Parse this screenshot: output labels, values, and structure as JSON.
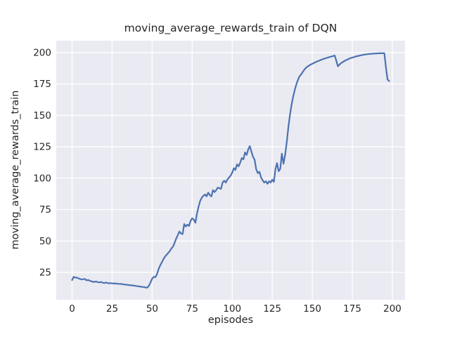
{
  "chart_data": {
    "type": "line",
    "title": "moving_average_rewards_train of DQN",
    "xlabel": "episodes",
    "ylabel": "moving_average_rewards_train",
    "legend": null,
    "grid": true,
    "xlim": [
      -9.9,
      207.9
    ],
    "ylim": [
      3.2,
      209.4
    ],
    "x_ticks": [
      0,
      25,
      50,
      75,
      100,
      125,
      150,
      175,
      200
    ],
    "y_ticks": [
      25,
      50,
      75,
      100,
      125,
      150,
      175,
      200
    ],
    "colors": {
      "figure_background": "#ffffff",
      "plot_background": "#eaeaf2",
      "grid": "#ffffff",
      "text": "#262626",
      "line": "#4c72b0"
    },
    "series": [
      {
        "name": "moving_average_rewards_train",
        "color": "#4c72b0",
        "x_start": 0,
        "x_step": 1,
        "values": [
          18.9,
          21.5,
          20.8,
          20.9,
          20.2,
          19.8,
          19.4,
          19.6,
          19.8,
          18.7,
          19.0,
          18.4,
          17.9,
          17.5,
          17.4,
          17.8,
          17.2,
          17.0,
          17.4,
          16.9,
          16.5,
          16.9,
          16.6,
          16.2,
          16.5,
          16.3,
          16.1,
          16.3,
          16.0,
          15.9,
          15.9,
          15.7,
          15.5,
          15.3,
          15.2,
          15.0,
          14.9,
          14.7,
          14.6,
          14.4,
          14.2,
          14.0,
          13.8,
          13.6,
          13.4,
          13.3,
          12.9,
          13.0,
          14.5,
          17.0,
          20.0,
          21.5,
          21.2,
          23.5,
          27.5,
          30.5,
          33.0,
          35.5,
          37.5,
          39.0,
          40.5,
          42.0,
          44.0,
          45.5,
          48.5,
          52.0,
          54.5,
          57.5,
          56.0,
          55.5,
          63.5,
          61.5,
          63.0,
          62.0,
          66.0,
          68.0,
          67.0,
          64.5,
          72.0,
          77.5,
          82.0,
          84.5,
          86.0,
          87.0,
          85.5,
          88.5,
          86.5,
          85.5,
          90.5,
          89.0,
          90.5,
          92.5,
          92.0,
          91.5,
          96.5,
          98.0,
          96.5,
          99.0,
          100.5,
          102.0,
          104.5,
          108.0,
          106.5,
          111.0,
          109.5,
          112.5,
          116.0,
          115.0,
          120.5,
          118.5,
          123.0,
          125.5,
          121.0,
          117.0,
          114.5,
          107.0,
          104.0,
          105.0,
          100.5,
          98.5,
          96.5,
          97.5,
          95.5,
          97.5,
          96.5,
          98.8,
          97.0,
          107.5,
          112.0,
          105.5,
          107.5,
          119.5,
          111.5,
          118.0,
          128.0,
          140.0,
          150.0,
          158.0,
          164.5,
          170.0,
          174.5,
          178.0,
          181.0,
          182.5,
          184.5,
          186.3,
          187.8,
          188.8,
          189.7,
          190.4,
          191.0,
          191.7,
          192.3,
          192.9,
          193.4,
          193.9,
          194.4,
          194.9,
          195.3,
          195.7,
          196.1,
          196.5,
          196.8,
          197.2,
          197.6,
          193.5,
          189.0,
          190.5,
          191.5,
          192.4,
          193.2,
          193.9,
          194.5,
          195.1,
          195.6,
          196.0,
          196.4,
          196.8,
          197.1,
          197.4,
          197.7,
          198.0,
          198.2,
          198.4,
          198.6,
          198.8,
          198.9,
          199.0,
          199.1,
          199.2,
          199.3,
          199.35,
          199.4,
          199.4,
          199.45,
          199.5,
          188.0,
          178.5,
          177.3
        ]
      }
    ]
  }
}
